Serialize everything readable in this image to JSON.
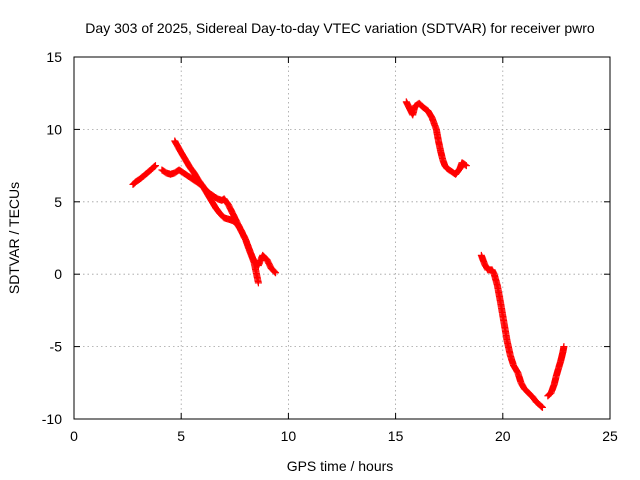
{
  "chart_data": {
    "type": "scatter",
    "title": "Day 303 of 2025, Sidereal Day-to-day VTEC variation (SDTVAR) for receiver pwro",
    "xlabel": "GPS time / hours",
    "ylabel": "SDTVAR / TECUs",
    "xlim": [
      0,
      25
    ],
    "ylim": [
      -10,
      15
    ],
    "x_ticks": [
      0,
      5,
      10,
      15,
      20,
      25
    ],
    "y_ticks": [
      -10,
      -5,
      0,
      5,
      10,
      15
    ],
    "x_tick_labels": [
      "0",
      "5",
      "10",
      "15",
      "20",
      "25"
    ],
    "y_tick_labels": [
      "-10",
      "-5",
      "0",
      "5",
      "10",
      "15"
    ],
    "grid": true,
    "marker": "+",
    "color": "#ff0000",
    "series": [
      {
        "name": "segment-1",
        "x": [
          2.75,
          2.9,
          3.1,
          3.3,
          3.5,
          3.65,
          3.8
        ],
        "y": [
          6.2,
          6.4,
          6.6,
          6.85,
          7.1,
          7.3,
          7.5
        ]
      },
      {
        "name": "segment-2",
        "x": [
          4.1,
          4.3,
          4.5,
          4.7,
          4.9,
          5.1,
          5.3,
          5.5,
          5.7,
          5.9,
          6.1,
          6.3,
          6.5,
          6.7,
          6.9,
          7.0,
          7.2,
          7.4,
          7.6,
          7.8,
          8.0,
          8.2,
          8.4,
          8.6
        ],
        "y": [
          7.2,
          7.0,
          6.9,
          7.0,
          7.2,
          7.0,
          6.8,
          6.6,
          6.4,
          6.2,
          5.9,
          5.6,
          5.4,
          5.2,
          5.1,
          5.2,
          4.8,
          4.2,
          3.6,
          3.0,
          2.4,
          1.6,
          0.8,
          -0.6
        ]
      },
      {
        "name": "segment-3",
        "x": [
          4.7,
          4.85,
          5.0,
          5.2,
          5.4,
          5.6,
          5.8,
          6.0,
          6.2,
          6.4,
          6.6,
          6.8,
          7.0,
          7.2,
          7.4,
          7.6,
          7.8,
          8.0,
          8.2,
          8.4,
          8.6,
          8.8,
          9.0,
          9.2,
          9.4
        ],
        "y": [
          9.2,
          8.8,
          8.4,
          7.9,
          7.4,
          7.0,
          6.5,
          6.1,
          5.6,
          5.1,
          4.6,
          4.2,
          3.9,
          3.8,
          3.7,
          3.5,
          3.0,
          2.4,
          1.6,
          0.9,
          0.6,
          1.3,
          1.0,
          0.4,
          0.1
        ]
      },
      {
        "name": "segment-4",
        "x": [
          15.5,
          15.6,
          15.7,
          15.8,
          15.9,
          16.1,
          16.3,
          16.5,
          16.7,
          16.9,
          17.0,
          17.1,
          17.2,
          17.3,
          17.4,
          17.6,
          17.8,
          18.0,
          18.1,
          18.3
        ],
        "y": [
          11.9,
          11.6,
          11.3,
          11.0,
          11.6,
          11.8,
          11.5,
          11.3,
          10.8,
          10.0,
          9.2,
          8.5,
          7.9,
          7.5,
          7.3,
          7.1,
          6.9,
          7.3,
          7.7,
          7.5
        ]
      },
      {
        "name": "segment-5",
        "x": [
          19.0,
          19.15,
          19.3,
          19.5,
          19.6,
          19.75,
          19.9,
          20.05,
          20.2,
          20.35,
          20.5,
          20.7,
          20.85,
          21.0,
          21.2,
          21.4,
          21.55,
          21.7,
          21.85
        ],
        "y": [
          1.3,
          0.7,
          0.3,
          0.3,
          0.0,
          -0.8,
          -2.0,
          -3.3,
          -4.6,
          -5.6,
          -6.3,
          -6.8,
          -7.5,
          -7.9,
          -8.2,
          -8.5,
          -8.8,
          -9.0,
          -9.2
        ]
      },
      {
        "name": "segment-6",
        "x": [
          22.1,
          22.25,
          22.4,
          22.5,
          22.6,
          22.7,
          22.8,
          22.85
        ],
        "y": [
          -8.4,
          -8.2,
          -7.6,
          -7.0,
          -6.5,
          -6.0,
          -5.4,
          -5.0
        ]
      }
    ]
  }
}
